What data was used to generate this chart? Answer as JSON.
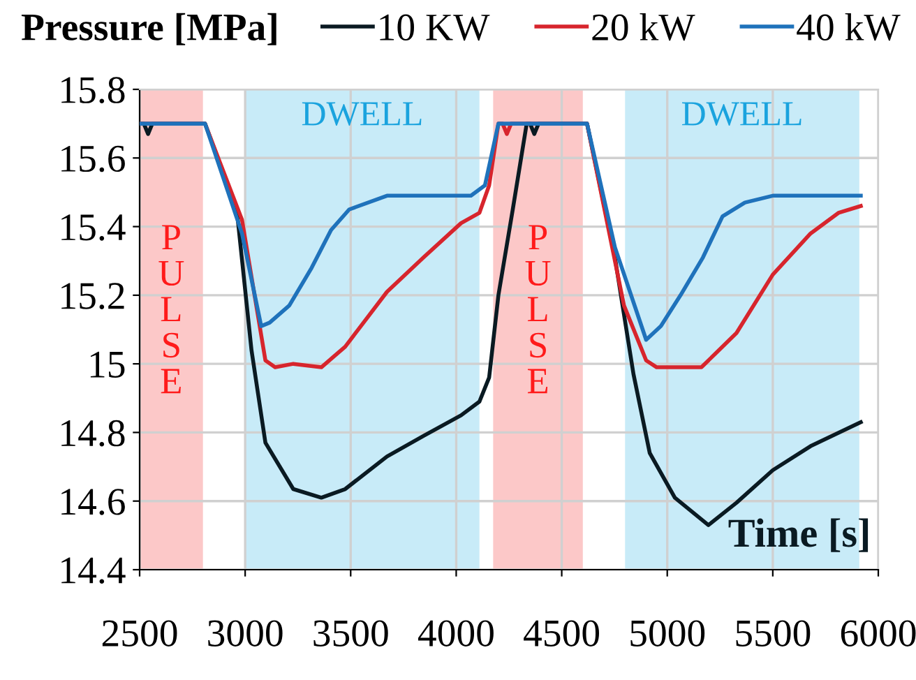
{
  "chart_data": {
    "type": "line",
    "ylabel": "Pressure [MPa]",
    "xlabel": "Time [s]",
    "xlim": [
      2500,
      6000
    ],
    "xticks": [
      2500,
      3000,
      3500,
      4000,
      4500,
      5000,
      5500,
      6000
    ],
    "ylim": [
      14.4,
      15.8
    ],
    "yticks": [
      14.4,
      14.6,
      14.8,
      15,
      15.2,
      15.4,
      15.6,
      15.8
    ],
    "grid": true,
    "legend": "top",
    "line_style": "solid",
    "bands": [
      {
        "axis": "x",
        "from": 2500,
        "to": 2800,
        "label": "PULSE",
        "color": "#fcc8c8"
      },
      {
        "axis": "x",
        "from": 3000,
        "to": 4110,
        "label": "DWELL",
        "color": "#c8ebf8"
      },
      {
        "axis": "x",
        "from": 4175,
        "to": 4600,
        "label": "PULSE",
        "color": "#fcc8c8"
      },
      {
        "axis": "x",
        "from": 4800,
        "to": 5910,
        "label": "DWELL",
        "color": "#c8ebf8"
      }
    ],
    "series": [
      {
        "name": "10 KW",
        "color": "#0a1a22",
        "x": [
          2500,
          2520,
          2540,
          2560,
          2580,
          2810,
          2960,
          3030,
          3096,
          3228,
          3361,
          3474,
          3672,
          3845,
          4023,
          4110,
          4156,
          4200,
          4268,
          4334,
          4350,
          4370,
          4390,
          4620,
          4752,
          4840,
          4917,
          5036,
          5195,
          5328,
          5500,
          5679,
          5917
        ],
        "values": [
          15.7,
          15.7,
          15.67,
          15.7,
          15.7,
          15.7,
          15.45,
          15.04,
          14.77,
          14.635,
          14.61,
          14.635,
          14.73,
          14.79,
          14.85,
          14.89,
          14.96,
          15.2,
          15.45,
          15.7,
          15.7,
          15.67,
          15.7,
          15.7,
          15.31,
          14.97,
          14.74,
          14.61,
          14.53,
          14.595,
          14.69,
          14.76,
          14.83
        ]
      },
      {
        "name": "20 kW",
        "color": "#d7252d",
        "x": [
          2500,
          2810,
          2985,
          3096,
          3142,
          3228,
          3361,
          3474,
          3672,
          3845,
          4023,
          4110,
          4156,
          4200,
          4220,
          4240,
          4260,
          4620,
          4795,
          4900,
          4950,
          5162,
          5328,
          5500,
          5679,
          5811,
          5917
        ],
        "values": [
          15.7,
          15.7,
          15.42,
          15.01,
          14.99,
          15.0,
          14.99,
          15.05,
          15.21,
          15.31,
          15.41,
          15.44,
          15.52,
          15.7,
          15.7,
          15.67,
          15.7,
          15.7,
          15.17,
          15.01,
          14.99,
          14.99,
          15.09,
          15.26,
          15.38,
          15.44,
          15.46
        ]
      },
      {
        "name": "40 kW",
        "color": "#1f72bb",
        "x": [
          2500,
          2810,
          2985,
          3076,
          3116,
          3209,
          3315,
          3407,
          3493,
          3672,
          4070,
          4136,
          4200,
          4620,
          4752,
          4900,
          4970,
          5063,
          5169,
          5262,
          5368,
          5500,
          5917
        ],
        "values": [
          15.7,
          15.7,
          15.38,
          15.11,
          15.12,
          15.17,
          15.28,
          15.39,
          15.45,
          15.49,
          15.49,
          15.52,
          15.7,
          15.7,
          15.34,
          15.07,
          15.11,
          15.2,
          15.31,
          15.43,
          15.47,
          15.49,
          15.49
        ]
      }
    ]
  }
}
